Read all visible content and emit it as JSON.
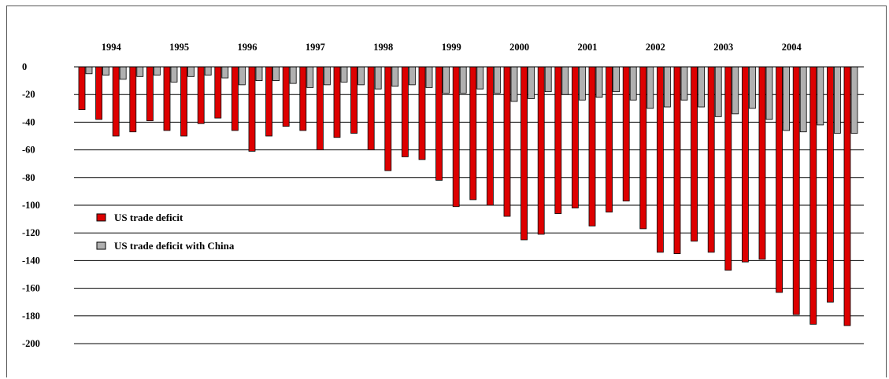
{
  "chart_data": {
    "type": "bar",
    "title": "",
    "xlabel": "",
    "ylabel": "",
    "ylim": [
      -200,
      0
    ],
    "yticks": [
      "0",
      "-20",
      "-40",
      "-60",
      "-80",
      "-100",
      "-120",
      "-140",
      "-160",
      "-180",
      "-200"
    ],
    "year_labels": [
      "1994",
      "1995",
      "1996",
      "1997",
      "1998",
      "1999",
      "2000",
      "2001",
      "2002",
      "2003",
      "2004"
    ],
    "grid": true,
    "legend_position": "left-middle",
    "bars_per_year": 4,
    "series": [
      {
        "name": "US trade deficit",
        "color": "#dd0000",
        "values": [
          -31,
          -38,
          -50,
          -47,
          -39,
          -46,
          -50,
          -41,
          -37,
          -46,
          -61,
          -50,
          -43,
          -46,
          -60,
          -51,
          -48,
          -60,
          -75,
          -65,
          -67,
          -82,
          -101,
          -96,
          -100,
          -108,
          -125,
          -121,
          -106,
          -102,
          -115,
          -105,
          -97,
          -117,
          -134,
          -135,
          -126,
          -134,
          -147,
          -141,
          -139,
          -163,
          -179,
          -186,
          -170,
          -187
        ]
      },
      {
        "name": "US trade deficit with China",
        "color": "#b0b0b0",
        "values": [
          -5,
          -6,
          -9,
          -7,
          -6,
          -11,
          -7,
          -6,
          -8,
          -13,
          -10,
          -10,
          -12,
          -15,
          -13,
          -11,
          -13,
          -16,
          -14,
          -13,
          -15,
          -19,
          -19,
          -16,
          -19,
          -25,
          -23,
          -18,
          -20,
          -24,
          -22,
          -18,
          -24,
          -30,
          -29,
          -24,
          -29,
          -36,
          -34,
          -30,
          -38,
          -46,
          -47,
          -42,
          -48,
          -48
        ]
      }
    ]
  }
}
